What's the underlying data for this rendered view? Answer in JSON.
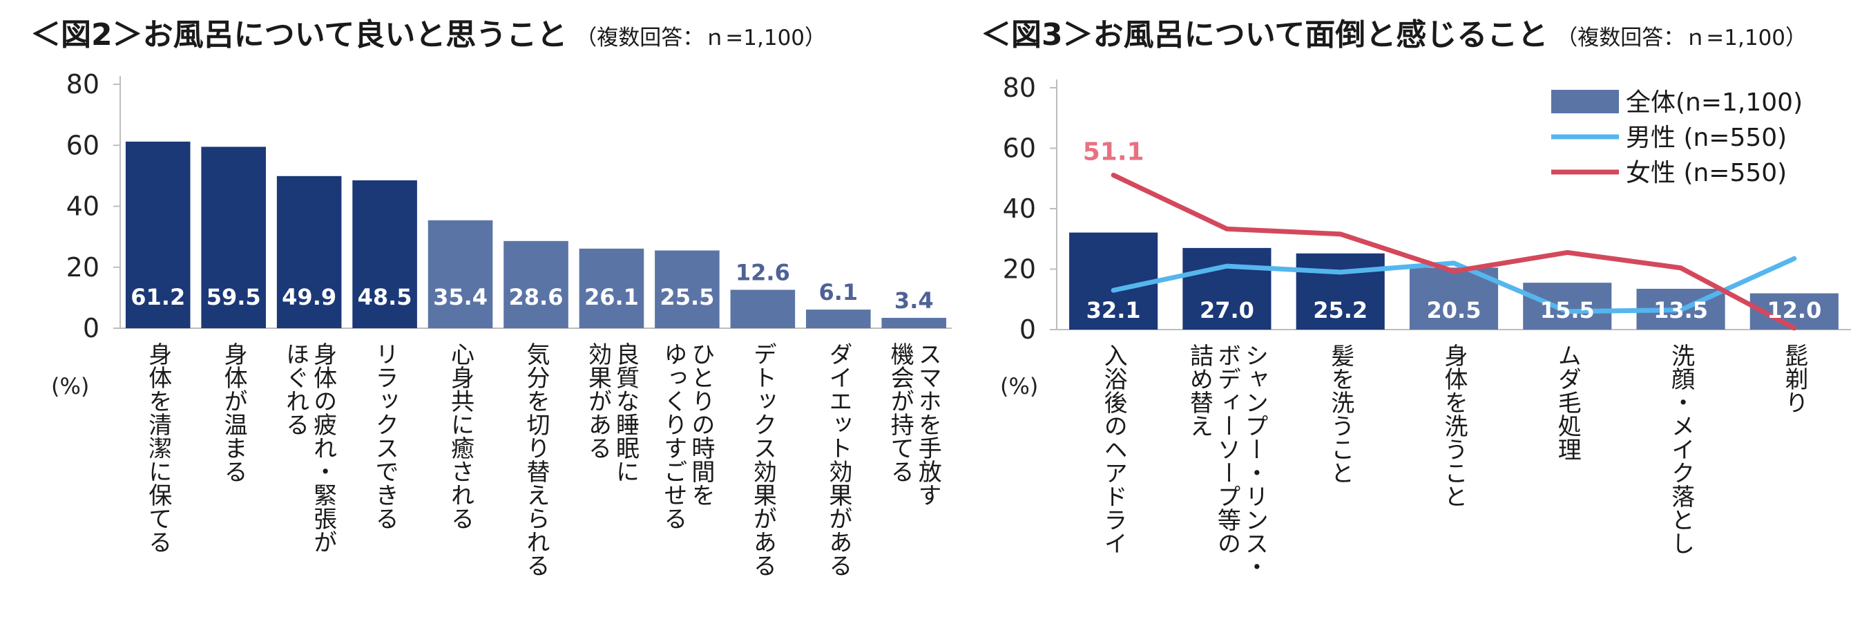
{
  "colors": {
    "dark": "#1b3877",
    "light": "#5b74a6",
    "blue_line": "#55b6ee",
    "red_line": "#d4485c",
    "axis": "#bdbdbd",
    "label_out": "#4f6296",
    "label_red": "#e87181"
  },
  "chart_data": [
    {
      "type": "bar",
      "title": "＜図2＞お風呂について良いと思うこと",
      "subtitle": "（複数回答：ｎ=1,100）",
      "ylabel": "(%)",
      "ylim": [
        0,
        80
      ],
      "yticks": [
        "0",
        "20",
        "40",
        "60",
        "80"
      ],
      "categories": [
        [
          "身体を清潔に保てる"
        ],
        [
          "身体が温まる"
        ],
        [
          "身体の疲れ・緊張が",
          "ほぐれる"
        ],
        [
          "リラックスできる"
        ],
        [
          "心身共に癒される"
        ],
        [
          "気分を切り替えられる"
        ],
        [
          "良質な睡眠に",
          "効果がある"
        ],
        [
          "ひとりの時間を",
          "ゆっくりすごせる"
        ],
        [
          "デトックス効果がある"
        ],
        [
          "ダイエット効果がある"
        ],
        [
          "スマホを手放す",
          "機会が持てる"
        ]
      ],
      "values": [
        61.2,
        59.5,
        49.9,
        48.5,
        35.4,
        28.6,
        26.1,
        25.5,
        12.6,
        6.1,
        3.4
      ],
      "labels": [
        "61.2",
        "59.5",
        "49.9",
        "48.5",
        "35.4",
        "28.6",
        "26.1",
        "25.5",
        "12.6",
        "6.1",
        "3.4"
      ],
      "highlight_count": 4
    },
    {
      "type": "bar+line",
      "title": "＜図3＞お風呂について面倒と感じること",
      "subtitle": "（複数回答：ｎ=1,100）",
      "ylabel": "(%)",
      "ylim": [
        0,
        80
      ],
      "yticks": [
        "0",
        "20",
        "40",
        "60",
        "80"
      ],
      "categories": [
        [
          "入浴後のヘアドライ"
        ],
        [
          "シャンプー・リンス・",
          "ボディーソープ等の",
          "詰め替え"
        ],
        [
          "髪を洗うこと"
        ],
        [
          "身体を洗うこと"
        ],
        [
          "ムダ毛処理"
        ],
        [
          "洗顔・メイク落とし"
        ],
        [
          "髭剃り"
        ]
      ],
      "series": [
        {
          "name": "全体(n=1,100)",
          "kind": "bar",
          "values": [
            32.1,
            27.0,
            25.2,
            20.5,
            15.5,
            13.5,
            12.0
          ],
          "labels": [
            "32.1",
            "27.0",
            "25.2",
            "20.5",
            "15.5",
            "13.5",
            "12.0"
          ]
        },
        {
          "name": "男性 (n=550)",
          "kind": "line",
          "values": [
            13.0,
            21.0,
            19.0,
            22.0,
            6.0,
            6.5,
            23.5
          ]
        },
        {
          "name": "女性 (n=550)",
          "kind": "line",
          "values": [
            51.1,
            33.3,
            31.6,
            19.3,
            25.5,
            20.4,
            0.5
          ]
        }
      ],
      "annotation": "51.1",
      "highlight_count": 3,
      "legend": "top-right"
    }
  ]
}
